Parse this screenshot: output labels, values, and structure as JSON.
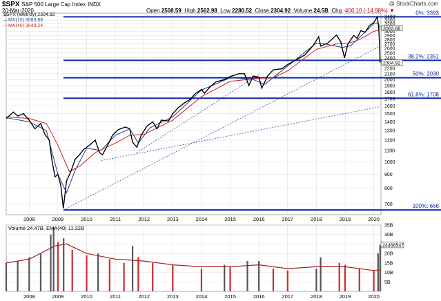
{
  "header": {
    "symbol": "$SPX",
    "name": "S&P 500 Large Cap Index",
    "exchange": "INDX",
    "date": "20-Mar-2020",
    "copyright": "@ StockCharts.com",
    "open_label": "Open",
    "open": "2508.59",
    "high_label": "High",
    "high": "2562.98",
    "low_label": "Low",
    "low": "2280.52",
    "close_label": "Close",
    "close": "2304.92",
    "volume_label": "Volume",
    "volume": "24.5B",
    "chg_label": "Chg",
    "chg": "-406.10 (-14.98%)",
    "chg_arrow": "▼"
  },
  "legend": {
    "price": "$SPX (Weekly) 2304.92",
    "ma10": "MA(10) 3083.88",
    "ma40": "MA(40) 3048.24",
    "volume": "Volume 24.47B, EMA(40) 11.32B"
  },
  "colors": {
    "price": "#000000",
    "ma10": "#1f3a8c",
    "ma40": "#cc1f1f",
    "fib": "#0a2aa8",
    "trend": "#2f4fa8",
    "vol_up": "#555555",
    "vol_down": "#cc2a2a",
    "vol_ema": "#aa1e1e",
    "grid": "#d9d9d9"
  },
  "chart_data": [
    {
      "type": "line",
      "title": "$SPX S&P 500 Large Cap Index",
      "xlabel": "",
      "ylabel": "",
      "scale": "log",
      "ylim": [
        640,
        3500
      ],
      "xlim": [
        2007.2,
        2020.25
      ],
      "grid": true,
      "legend_position": "top-left",
      "x_ticks": [
        "2008",
        "2009",
        "2010",
        "2011",
        "2012",
        "2013",
        "2014",
        "2015",
        "2016",
        "2017",
        "2018",
        "2019",
        "2020"
      ],
      "y_ticks": [
        700,
        800,
        900,
        1000,
        1100,
        1200,
        1300,
        1400,
        1500,
        1600,
        1700,
        1800,
        1900,
        2000,
        2100,
        2200,
        2300,
        2400,
        2500,
        2600,
        2700,
        2800,
        2900,
        3000,
        3100,
        3200,
        3300,
        3400
      ],
      "series": [
        {
          "name": "$SPX (Weekly)",
          "x": [
            2007.2,
            2007.45,
            2007.6,
            2007.8,
            2008.0,
            2008.2,
            2008.4,
            2008.55,
            2008.7,
            2008.8,
            2008.9,
            2009.0,
            2009.1,
            2009.19,
            2009.3,
            2009.45,
            2009.6,
            2009.75,
            2009.9,
            2010.1,
            2010.3,
            2010.45,
            2010.55,
            2010.75,
            2010.9,
            2011.1,
            2011.35,
            2011.5,
            2011.6,
            2011.75,
            2011.9,
            2012.1,
            2012.3,
            2012.45,
            2012.6,
            2012.85,
            2013.0,
            2013.2,
            2013.4,
            2013.6,
            2013.8,
            2014.0,
            2014.1,
            2014.3,
            2014.5,
            2014.8,
            2015.0,
            2015.3,
            2015.5,
            2015.65,
            2015.8,
            2016.0,
            2016.1,
            2016.3,
            2016.5,
            2016.8,
            2017.0,
            2017.3,
            2017.6,
            2017.9,
            2018.08,
            2018.15,
            2018.4,
            2018.7,
            2018.85,
            2018.98,
            2019.1,
            2019.3,
            2019.42,
            2019.55,
            2019.7,
            2019.85,
            2020.0,
            2020.12,
            2020.17,
            2020.2,
            2020.22
          ],
          "y": [
            1440,
            1520,
            1470,
            1500,
            1420,
            1320,
            1380,
            1260,
            1200,
            1000,
            880,
            900,
            820,
            676,
            850,
            920,
            1020,
            1060,
            1110,
            1150,
            1200,
            1080,
            1060,
            1160,
            1250,
            1310,
            1340,
            1320,
            1180,
            1130,
            1250,
            1350,
            1400,
            1320,
            1420,
            1410,
            1500,
            1580,
            1640,
            1690,
            1780,
            1840,
            1780,
            1880,
            1960,
            2000,
            2050,
            2100,
            2100,
            1900,
            2060,
            2040,
            1860,
            2060,
            2170,
            2190,
            2270,
            2360,
            2460,
            2670,
            2870,
            2650,
            2720,
            2910,
            2750,
            2400,
            2700,
            2900,
            2830,
            3020,
            2980,
            3150,
            3230,
            3390,
            3100,
            2700,
            2304.92
          ]
        },
        {
          "name": "MA(10)",
          "x": [
            2007.2,
            2008.0,
            2008.6,
            2009.0,
            2009.3,
            2009.6,
            2010.0,
            2010.5,
            2011.0,
            2011.5,
            2011.8,
            2012.2,
            2013.0,
            2014.0,
            2015.0,
            2015.75,
            2016.2,
            2017.0,
            2018.0,
            2018.3,
            2018.9,
            2019.2,
            2020.0,
            2020.15,
            2020.22
          ],
          "y": [
            1450,
            1400,
            1300,
            900,
            770,
            930,
            1120,
            1100,
            1250,
            1320,
            1170,
            1330,
            1460,
            1830,
            2030,
            2010,
            1920,
            2240,
            2720,
            2700,
            2620,
            2660,
            3200,
            3230,
            3083.88
          ]
        },
        {
          "name": "MA(40)",
          "x": [
            2007.2,
            2008.0,
            2008.6,
            2009.0,
            2009.4,
            2009.8,
            2010.3,
            2011.0,
            2011.5,
            2012.0,
            2013.0,
            2014.0,
            2015.0,
            2016.0,
            2016.5,
            2017.0,
            2018.0,
            2018.7,
            2019.1,
            2019.5,
            2020.0,
            2020.22
          ],
          "y": [
            1460,
            1440,
            1380,
            1150,
            920,
            970,
            1080,
            1170,
            1250,
            1260,
            1420,
            1730,
            1970,
            2020,
            2030,
            2150,
            2580,
            2700,
            2710,
            2800,
            3000,
            3048.24
          ]
        }
      ],
      "fibonacci": [
        {
          "label": "0%: 3393",
          "value": 3393
        },
        {
          "label": "38.2%: 2351",
          "value": 2351
        },
        {
          "label": "50%: 2030",
          "value": 2030
        },
        {
          "label": "61.8%: 1708",
          "value": 1708
        },
        {
          "label": "100%: 666",
          "value": 666
        }
      ],
      "trendlines": [
        {
          "from": [
            2009.19,
            666
          ],
          "to": [
            2020.22,
            2650
          ]
        },
        {
          "from": [
            2010.5,
            1010
          ],
          "to": [
            2020.22,
            1590
          ]
        },
        {
          "from": [
            2011.75,
            1080
          ],
          "to": [
            2016.05,
            2100
          ]
        }
      ],
      "price_labels": [
        {
          "series": "MA(10)",
          "value": 3083.88,
          "label": "3083.88"
        },
        {
          "series": "$SPX (Weekly)",
          "value": 2304.92,
          "label": "2304.92"
        }
      ]
    },
    {
      "type": "bar",
      "title": "Volume",
      "xlabel": "",
      "ylabel": "",
      "ylim": [
        0,
        35
      ],
      "y_ticks": [
        5,
        10,
        15,
        20,
        25,
        30,
        35
      ],
      "y_tick_labels": [
        "5B",
        "10B",
        "15B",
        "20B",
        "25B",
        "30B",
        "35B"
      ],
      "volume_label": "24468547",
      "series": [
        {
          "name": "Volume (B)",
          "x": [
            2007.2,
            2007.6,
            2008.0,
            2008.4,
            2008.75,
            2008.85,
            2009.0,
            2009.2,
            2009.5,
            2010.0,
            2010.4,
            2010.8,
            2011.3,
            2011.6,
            2011.8,
            2012.3,
            2013.0,
            2014.0,
            2014.8,
            2015.0,
            2015.6,
            2016.0,
            2016.5,
            2017.0,
            2018.0,
            2018.15,
            2018.8,
            2019.0,
            2019.5,
            2020.0,
            2020.15,
            2020.22
          ],
          "values": [
            15,
            16,
            18,
            20,
            30,
            34,
            26,
            28,
            22,
            19,
            20,
            17,
            15,
            24,
            18,
            15,
            14,
            12,
            14,
            13,
            16,
            16,
            12,
            11,
            12,
            18,
            15,
            14,
            12,
            11,
            20,
            24.47
          ]
        },
        {
          "name": "EMA(40)",
          "x": [
            2007.2,
            2008.0,
            2008.9,
            2009.3,
            2010.0,
            2011.0,
            2012.0,
            2013.0,
            2014.0,
            2015.0,
            2016.0,
            2017.0,
            2018.0,
            2019.0,
            2020.0,
            2020.22
          ],
          "values": [
            15,
            17,
            24,
            25,
            20,
            17,
            16,
            14,
            13,
            13,
            14,
            12,
            13,
            13,
            11,
            11.32
          ]
        }
      ]
    }
  ]
}
